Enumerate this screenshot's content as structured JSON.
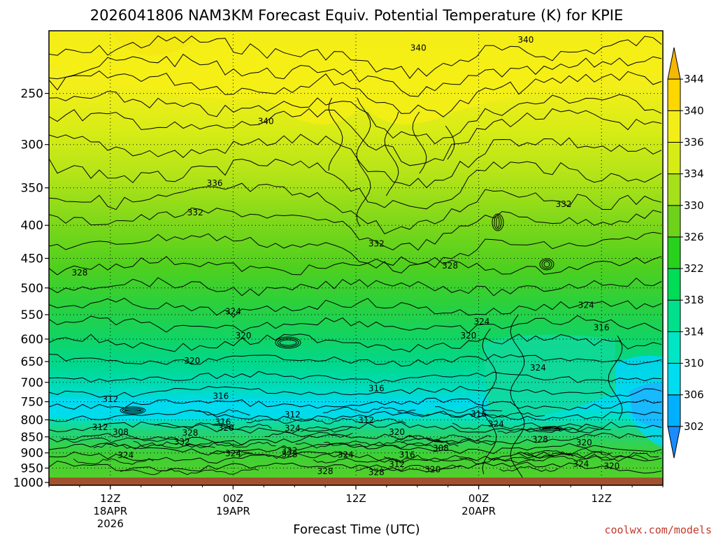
{
  "chart_data": {
    "type": "heatmap",
    "title": "2026041806 NAM3KM Forecast Equiv. Potential Temperature (K) for KPIE",
    "xlabel": "Forecast Time (UTC)",
    "ylabel": "",
    "y_scale": "log-pressure",
    "y_ticks": [
      "250",
      "300",
      "350",
      "400",
      "450",
      "500",
      "550",
      "600",
      "650",
      "700",
      "750",
      "800",
      "850",
      "900",
      "950",
      "1000"
    ],
    "y_tick_values": [
      250,
      300,
      350,
      400,
      450,
      500,
      550,
      600,
      650,
      700,
      750,
      800,
      850,
      900,
      950,
      1000
    ],
    "ylim": [
      200,
      1010
    ],
    "x_ticks": [
      {
        "line1": "12Z",
        "line2": "18APR",
        "line3": "2026",
        "hour": 6
      },
      {
        "line1": "00Z",
        "line2": "19APR",
        "line3": "",
        "hour": 18
      },
      {
        "line1": "12Z",
        "line2": "",
        "line3": "",
        "hour": 30
      },
      {
        "line1": "00Z",
        "line2": "20APR",
        "line3": "",
        "hour": 42
      },
      {
        "line1": "12Z",
        "line2": "",
        "line3": "",
        "hour": 54
      }
    ],
    "xlim_hours": [
      0,
      60
    ],
    "grid": true,
    "colorbar": {
      "levels": [
        302,
        306,
        310,
        314,
        318,
        322,
        326,
        330,
        334,
        336,
        340,
        344
      ],
      "colors": [
        "#1a8cff",
        "#00b0ff",
        "#00dcf0",
        "#00e6c4",
        "#00e08c",
        "#00dc55",
        "#28d21c",
        "#6ed21a",
        "#a6e01a",
        "#d6ec14",
        "#f4ee18",
        "#ffd700",
        "#f5b800"
      ],
      "placement": "right"
    },
    "contour_labels": [
      {
        "text": "340",
        "hour": 36.1,
        "p": 213
      },
      {
        "text": "340",
        "hour": 46.6,
        "p": 207
      },
      {
        "text": "340",
        "hour": 21.2,
        "p": 277
      },
      {
        "text": "336",
        "hour": 16.2,
        "p": 345
      },
      {
        "text": "332",
        "hour": 14.3,
        "p": 383
      },
      {
        "text": "332",
        "hour": 50.3,
        "p": 372
      },
      {
        "text": "332",
        "hour": 32.0,
        "p": 428
      },
      {
        "text": "328",
        "hour": 3.0,
        "p": 475
      },
      {
        "text": "328",
        "hour": 39.2,
        "p": 463
      },
      {
        "text": "324",
        "hour": 18.0,
        "p": 545
      },
      {
        "text": "324",
        "hour": 52.5,
        "p": 533
      },
      {
        "text": "324",
        "hour": 42.3,
        "p": 565
      },
      {
        "text": "324",
        "hour": 47.8,
        "p": 666
      },
      {
        "text": "324",
        "hour": 43.7,
        "p": 814
      },
      {
        "text": "320",
        "hour": 19.0,
        "p": 594
      },
      {
        "text": "320",
        "hour": 41.0,
        "p": 594
      },
      {
        "text": "320",
        "hour": 14.0,
        "p": 650
      },
      {
        "text": "316",
        "hour": 54.0,
        "p": 577
      },
      {
        "text": "316",
        "hour": 16.8,
        "p": 737
      },
      {
        "text": "316",
        "hour": 32.0,
        "p": 717
      },
      {
        "text": "316",
        "hour": 42.0,
        "p": 785
      },
      {
        "text": "312",
        "hour": 6.0,
        "p": 745
      },
      {
        "text": "312",
        "hour": 23.8,
        "p": 787
      },
      {
        "text": "312",
        "hour": 31.0,
        "p": 803
      },
      {
        "text": "312",
        "hour": 5.0,
        "p": 823
      },
      {
        "text": "308",
        "hour": 7.0,
        "p": 838
      },
      {
        "text": "308",
        "hour": 38.3,
        "p": 887
      },
      {
        "text": "328",
        "hour": 13.8,
        "p": 840
      },
      {
        "text": "332",
        "hour": 13.0,
        "p": 868
      },
      {
        "text": "316",
        "hour": 17.0,
        "p": 808
      },
      {
        "text": "320",
        "hour": 17.3,
        "p": 825
      },
      {
        "text": "324",
        "hour": 23.8,
        "p": 826
      },
      {
        "text": "320",
        "hour": 34.0,
        "p": 838
      },
      {
        "text": "332",
        "hour": 23.5,
        "p": 895
      },
      {
        "text": "328",
        "hour": 23.5,
        "p": 907
      },
      {
        "text": "324",
        "hour": 18.0,
        "p": 904
      },
      {
        "text": "324",
        "hour": 7.5,
        "p": 910
      },
      {
        "text": "324",
        "hour": 29.0,
        "p": 908
      },
      {
        "text": "316",
        "hour": 35.0,
        "p": 908
      },
      {
        "text": "312",
        "hour": 34.0,
        "p": 940
      },
      {
        "text": "320",
        "hour": 37.5,
        "p": 957
      },
      {
        "text": "328",
        "hour": 27.0,
        "p": 963
      },
      {
        "text": "328",
        "hour": 32.0,
        "p": 967
      },
      {
        "text": "328",
        "hour": 48.0,
        "p": 860
      },
      {
        "text": "320",
        "hour": 52.3,
        "p": 870
      },
      {
        "text": "324",
        "hour": 52.0,
        "p": 938
      },
      {
        "text": "320",
        "hour": 55.0,
        "p": 945
      }
    ]
  },
  "credit": "coolwx.com/models"
}
